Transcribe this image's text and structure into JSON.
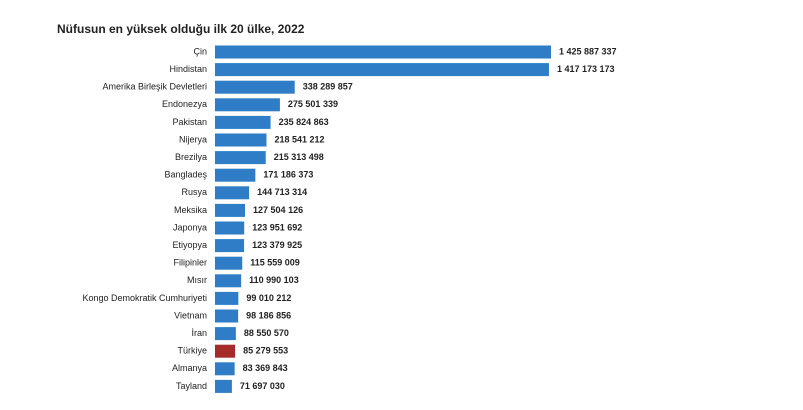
{
  "chart_data": {
    "type": "barh",
    "title": "Nüfusun en yüksek olduğu ilk 20 ülke, 2022",
    "categories": [
      "Çin",
      "Hindistan",
      "Amerika Birleşik Devletleri",
      "Endonezya",
      "Pakistan",
      "Nijerya",
      "Brezilya",
      "Bangladeş",
      "Rusya",
      "Meksika",
      "Japonya",
      "Etiyopya",
      "Filipinler",
      "Mısır",
      "Kongo Demokratik Cumhuriyeti",
      "Vietnam",
      "İran",
      "Türkiye",
      "Almanya",
      "Tayland"
    ],
    "values": [
      1425887337,
      1417173173,
      338289857,
      275501339,
      235824863,
      218541212,
      215313498,
      171186373,
      144713314,
      127504126,
      123951692,
      123379925,
      115559009,
      110990103,
      99010212,
      98186856,
      88550570,
      85279553,
      83369843,
      71697030
    ],
    "value_labels": [
      "1 425 887 337",
      "1 417 173 173",
      "338 289 857",
      "275 501 339",
      "235 824 863",
      "218 541 212",
      "215 313 498",
      "171 186 373",
      "144 713 314",
      "127 504 126",
      "123 951 692",
      "123 379 925",
      "115 559 009",
      "110 990 103",
      "99 010 212",
      "98 186 856",
      "88 550 570",
      "85 279 553",
      "83 369 843",
      "71 697 030"
    ],
    "colors": [
      "#2e7dc6",
      "#2e7dc6",
      "#2e7dc6",
      "#2e7dc6",
      "#2e7dc6",
      "#2e7dc6",
      "#2e7dc6",
      "#2e7dc6",
      "#2e7dc6",
      "#2e7dc6",
      "#2e7dc6",
      "#2e7dc6",
      "#2e7dc6",
      "#2e7dc6",
      "#2e7dc6",
      "#2e7dc6",
      "#2e7dc6",
      "#a52a2a",
      "#2e7dc6",
      "#2e7dc6"
    ]
  }
}
